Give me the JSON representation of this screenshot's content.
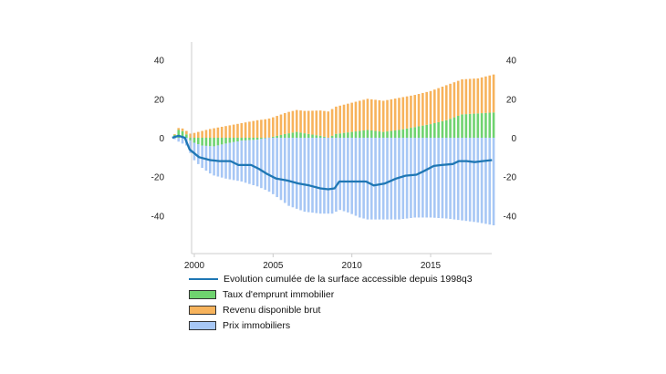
{
  "chart_data": {
    "type": "bar",
    "stacked": true,
    "title": "",
    "xlabel": "",
    "ylabel": "",
    "ylim": [
      -45,
      45
    ],
    "xlim": [
      1998.5,
      2019.0
    ],
    "x_ticks": [
      "2000",
      "2005",
      "2010",
      "2015"
    ],
    "y_ticks_left": [
      "40",
      "20",
      "0",
      "-20",
      "-40"
    ],
    "y_ticks_right": [
      "40",
      "20",
      "0",
      "-20",
      "-40"
    ],
    "gridlines": false,
    "legend_position": "bottom",
    "colors": {
      "line": "#1f77b4",
      "taux": "#6fd36f",
      "revenu": "#f7b35c",
      "prix": "#a7c7f5",
      "axis": "#cccccc"
    },
    "series": [
      {
        "name": "Evolution cumulée de la surface accessible depuis 1998q3",
        "kind": "line",
        "points": [
          [
            1998.6,
            0
          ],
          [
            1999.0,
            1
          ],
          [
            1999.4,
            0
          ],
          [
            1999.7,
            -6
          ],
          [
            2000.3,
            -10
          ],
          [
            2001.0,
            -11.5
          ],
          [
            2001.6,
            -12
          ],
          [
            2002.3,
            -12
          ],
          [
            2002.8,
            -14
          ],
          [
            2003.6,
            -14
          ],
          [
            2004.1,
            -16
          ],
          [
            2004.6,
            -18.5
          ],
          [
            2005.2,
            -21
          ],
          [
            2005.9,
            -22
          ],
          [
            2006.6,
            -23.5
          ],
          [
            2007.3,
            -24.5
          ],
          [
            2008.0,
            -26
          ],
          [
            2008.5,
            -26.5
          ],
          [
            2008.9,
            -26
          ],
          [
            2009.2,
            -22.5
          ],
          [
            2010.0,
            -22.5
          ],
          [
            2010.9,
            -22.5
          ],
          [
            2011.4,
            -24.5
          ],
          [
            2012.1,
            -23.5
          ],
          [
            2012.8,
            -21
          ],
          [
            2013.4,
            -19.5
          ],
          [
            2014.1,
            -19
          ],
          [
            2014.6,
            -17
          ],
          [
            2015.2,
            -14.5
          ],
          [
            2015.7,
            -14
          ],
          [
            2016.4,
            -13.5
          ],
          [
            2016.8,
            -12
          ],
          [
            2017.3,
            -12
          ],
          [
            2017.8,
            -12.5
          ],
          [
            2018.3,
            -12
          ],
          [
            2018.9,
            -11.5
          ]
        ]
      },
      {
        "name": "Taux d'emprunt immobilier",
        "kind": "bar",
        "points": [
          [
            1998.6,
            0
          ],
          [
            1999.0,
            4
          ],
          [
            1999.4,
            3
          ],
          [
            1999.8,
            -2
          ],
          [
            2000.5,
            -4
          ],
          [
            2001.2,
            -4.5
          ],
          [
            2002.0,
            -3
          ],
          [
            2003.0,
            -1.5
          ],
          [
            2004.0,
            -1
          ],
          [
            2005.0,
            0.5
          ],
          [
            2005.8,
            2
          ],
          [
            2006.5,
            3
          ],
          [
            2007.2,
            2
          ],
          [
            2008.0,
            1
          ],
          [
            2008.5,
            0
          ],
          [
            2009.0,
            2
          ],
          [
            2010.0,
            3
          ],
          [
            2011.0,
            4
          ],
          [
            2012.0,
            3
          ],
          [
            2013.0,
            4
          ],
          [
            2014.0,
            5.5
          ],
          [
            2015.0,
            7
          ],
          [
            2016.0,
            9
          ],
          [
            2017.0,
            12
          ],
          [
            2018.0,
            12.5
          ],
          [
            2019.0,
            13
          ]
        ]
      },
      {
        "name": "Revenu disponible brut",
        "kind": "bar",
        "points": [
          [
            1998.6,
            0
          ],
          [
            1999.0,
            1
          ],
          [
            2000.0,
            2.5
          ],
          [
            2001.0,
            4.5
          ],
          [
            2002.0,
            6
          ],
          [
            2003.0,
            7.5
          ],
          [
            2004.0,
            9
          ],
          [
            2005.0,
            10
          ],
          [
            2006.0,
            11
          ],
          [
            2007.0,
            11.5
          ],
          [
            2008.0,
            13
          ],
          [
            2009.0,
            14
          ],
          [
            2010.0,
            15
          ],
          [
            2011.0,
            16
          ],
          [
            2012.0,
            16
          ],
          [
            2013.0,
            16.5
          ],
          [
            2014.0,
            16.5
          ],
          [
            2015.0,
            17
          ],
          [
            2016.0,
            18
          ],
          [
            2017.0,
            18
          ],
          [
            2018.0,
            18
          ],
          [
            2019.0,
            19.5
          ]
        ]
      },
      {
        "name": "Prix immobiliers",
        "kind": "bar",
        "points": [
          [
            1998.6,
            0
          ],
          [
            1999.0,
            -2
          ],
          [
            1999.5,
            -4
          ],
          [
            2000.0,
            -9
          ],
          [
            2001.0,
            -14
          ],
          [
            2002.0,
            -18
          ],
          [
            2003.0,
            -21
          ],
          [
            2004.0,
            -24
          ],
          [
            2005.0,
            -29
          ],
          [
            2006.0,
            -35
          ],
          [
            2007.0,
            -38
          ],
          [
            2008.0,
            -39
          ],
          [
            2008.8,
            -39
          ],
          [
            2009.2,
            -37
          ],
          [
            2009.8,
            -38.5
          ],
          [
            2010.5,
            -41
          ],
          [
            2011.0,
            -42
          ],
          [
            2012.0,
            -42
          ],
          [
            2013.0,
            -42
          ],
          [
            2014.0,
            -41
          ],
          [
            2015.0,
            -41
          ],
          [
            2016.0,
            -41.5
          ],
          [
            2017.0,
            -42.5
          ],
          [
            2018.0,
            -43.5
          ],
          [
            2019.0,
            -45
          ]
        ]
      }
    ]
  }
}
